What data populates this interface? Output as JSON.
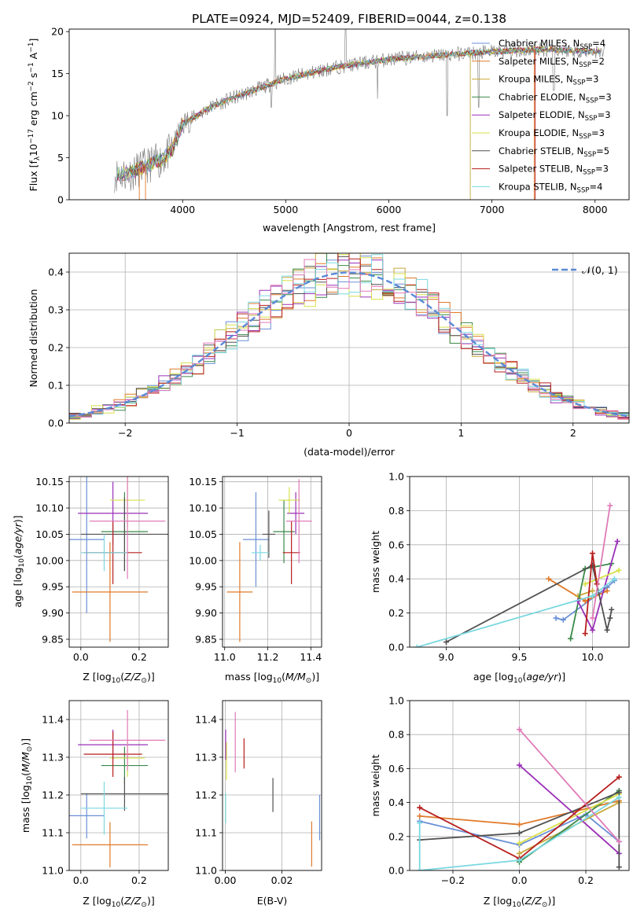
{
  "title": "PLATE=0924, MJD=52409, FIBERID=0044, z=0.138",
  "colors": {
    "cM": "#6a8fd6",
    "sM": "#e07a2a",
    "kM": "#c8a83a",
    "cE": "#3a8a4a",
    "sE": "#9a30b8",
    "kE": "#d8e04a",
    "cS": "#505050",
    "sS": "#b81e1e",
    "kS": "#7ad8e0",
    "pink": "#e07ab8",
    "gauss": "#5b8ad6",
    "grid": "#b0b0b0"
  },
  "chart_data": [
    {
      "type": "line",
      "id": "spectrum",
      "xlabel": "wavelength [Angstrom, rest frame]",
      "ylabel": "Flux [f",
      "xlim": [
        2900,
        8330
      ],
      "ylim": [
        0,
        20.3
      ],
      "xticks": [
        "4000",
        "5000",
        "6000",
        "7000",
        "8000"
      ],
      "yticks": [
        "0",
        "5",
        "10",
        "15",
        "20"
      ],
      "legend_position": "top-right",
      "series": [
        {
          "name": "Chabrier MILES, N",
          "nssp": "=4",
          "ckey": "cM"
        },
        {
          "name": "Salpeter MILES, N",
          "nssp": "=2",
          "ckey": "sM"
        },
        {
          "name": "Kroupa MILES, N",
          "nssp": "=3",
          "ckey": "kM"
        },
        {
          "name": "Chabrier ELODIE, N",
          "nssp": "=3",
          "ckey": "cE"
        },
        {
          "name": "Salpeter ELODIE, N",
          "nssp": "=3",
          "ckey": "sE"
        },
        {
          "name": "Kroupa ELODIE, N",
          "nssp": "=3",
          "ckey": "kE"
        },
        {
          "name": "Chabrier STELIB, N",
          "nssp": "=5",
          "ckey": "cS"
        },
        {
          "name": "Salpeter STELIB, N",
          "nssp": "=3",
          "ckey": "sS"
        },
        {
          "name": "Kroupa STELIB, N",
          "nssp": "=4",
          "ckey": "kS"
        }
      ],
      "continuum": [
        [
          3340,
          3.0
        ],
        [
          3500,
          3.2
        ],
        [
          3600,
          3.8
        ],
        [
          3800,
          4.8
        ],
        [
          3900,
          6.0
        ],
        [
          4000,
          9.0
        ],
        [
          4300,
          11.2
        ],
        [
          4600,
          12.6
        ],
        [
          5000,
          14.4
        ],
        [
          5500,
          15.8
        ],
        [
          6000,
          16.7
        ],
        [
          6500,
          17.2
        ],
        [
          7000,
          17.6
        ],
        [
          7500,
          17.9
        ],
        [
          8100,
          17.6
        ]
      ]
    },
    {
      "type": "bar",
      "id": "residuals",
      "xlabel": "(data-model)/error",
      "ylabel": "Normed distribution",
      "xlim": [
        -2.5,
        2.5
      ],
      "ylim": [
        0,
        0.45
      ],
      "xticks": [
        "−2",
        "−1",
        "0",
        "1",
        "2"
      ],
      "yticks": [
        "0.0",
        "0.1",
        "0.2",
        "0.3",
        "0.4"
      ],
      "legend": "𝒩(0, 1)",
      "legend_position": "top-right"
    },
    {
      "type": "scatter",
      "id": "age-vs-Z",
      "xlabel": "Z [log",
      "ylabel": "age  [log",
      "xlim": [
        -0.04,
        0.3
      ],
      "ylim": [
        9.835,
        10.16
      ],
      "xticks": [
        "0.0",
        "0.2"
      ],
      "yticks": [
        "9.85",
        "9.90",
        "9.95",
        "10.00",
        "10.05",
        "10.10",
        "10.15"
      ],
      "points": [
        {
          "c": "cM",
          "x": 0.02,
          "xe": 0.06,
          "y": 10.04,
          "ye": 0.14
        },
        {
          "c": "sM",
          "x": 0.1,
          "xe": 0.13,
          "y": 9.94,
          "ye": 0.095
        },
        {
          "c": "cE",
          "x": 0.15,
          "xe": 0.08,
          "y": 10.055,
          "ye": 0.075
        },
        {
          "c": "sE",
          "x": 0.11,
          "xe": 0.12,
          "y": 10.09,
          "ye": 0.06
        },
        {
          "c": "kE",
          "x": 0.16,
          "xe": 0.06,
          "y": 10.115,
          "ye": 0.05
        },
        {
          "c": "cS",
          "x": 0.15,
          "xe": 0.15,
          "y": 10.05,
          "ye": 0.07
        },
        {
          "c": "sS",
          "x": 0.11,
          "xe": 0.1,
          "y": 10.015,
          "ye": 0.06
        },
        {
          "c": "kS",
          "x": 0.08,
          "xe": 0.08,
          "y": 10.015,
          "ye": 0.035
        },
        {
          "c": "pink",
          "x": 0.16,
          "xe": 0.13,
          "y": 10.075,
          "ye": 0.11
        }
      ]
    },
    {
      "type": "scatter",
      "id": "age-vs-mass",
      "xlabel": "mass [log",
      "ylabel": "",
      "xlim": [
        10.99,
        11.45
      ],
      "ylim": [
        9.835,
        10.16
      ],
      "xticks": [
        "11.0",
        "11.2",
        "11.4"
      ],
      "yticks": [
        "9.85",
        "9.90",
        "9.95",
        "10.00",
        "10.05",
        "10.10",
        "10.15"
      ],
      "points": [
        {
          "c": "cM",
          "x": 11.145,
          "xe": 0.06,
          "y": 10.04,
          "ye": 0.09
        },
        {
          "c": "sM",
          "x": 11.07,
          "xe": 0.06,
          "y": 9.94,
          "ye": 0.095
        },
        {
          "c": "cE",
          "x": 11.275,
          "xe": 0.05,
          "y": 10.055,
          "ye": 0.06
        },
        {
          "c": "sE",
          "x": 11.33,
          "xe": 0.04,
          "y": 10.09,
          "ye": 0.04
        },
        {
          "c": "kE",
          "x": 11.3,
          "xe": 0.05,
          "y": 10.115,
          "ye": 0.025
        },
        {
          "c": "cS",
          "x": 11.205,
          "xe": 0.03,
          "y": 10.05,
          "ye": 0.045
        },
        {
          "c": "sS",
          "x": 11.31,
          "xe": 0.04,
          "y": 10.015,
          "ye": 0.06
        },
        {
          "c": "kS",
          "x": 11.165,
          "xe": 0.04,
          "y": 10.015,
          "ye": 0.015
        },
        {
          "c": "pink",
          "x": 11.345,
          "xe": 0.06,
          "y": 10.075,
          "ye": 0.08
        }
      ]
    },
    {
      "type": "line",
      "id": "mass-weight-vs-age",
      "xlabel": "age  [log",
      "ylabel": "mass weight",
      "xlim": [
        8.75,
        10.25
      ],
      "ylim": [
        0,
        1.0
      ],
      "xticks": [
        "9.0",
        "9.5",
        "10.0"
      ],
      "yticks": [
        "0.0",
        "0.2",
        "0.4",
        "0.6",
        "0.8",
        "1.0"
      ],
      "series": [
        {
          "c": "cM",
          "pts": [
            [
              9.75,
              0.17
            ],
            [
              9.8,
              0.16
            ],
            [
              10.1,
              0.35
            ],
            [
              10.15,
              0.39
            ]
          ]
        },
        {
          "c": "sM",
          "pts": [
            [
              9.7,
              0.4
            ],
            [
              9.95,
              0.27
            ],
            [
              10.1,
              0.33
            ]
          ]
        },
        {
          "c": "kM",
          "pts": [
            [
              9.9,
              0.3
            ],
            [
              10.0,
              0.33
            ]
          ]
        },
        {
          "c": "cE",
          "pts": [
            [
              9.85,
              0.05
            ],
            [
              9.95,
              0.46
            ],
            [
              10.13,
              0.49
            ]
          ]
        },
        {
          "c": "sE",
          "pts": [
            [
              9.9,
              0.27
            ],
            [
              10.0,
              0.1
            ],
            [
              10.17,
              0.62
            ]
          ]
        },
        {
          "c": "kE",
          "pts": [
            [
              9.95,
              0.37
            ],
            [
              10.18,
              0.45
            ]
          ]
        },
        {
          "c": "cS",
          "pts": [
            [
              9.0,
              0.03
            ],
            [
              10.0,
              0.48
            ],
            [
              10.1,
              0.1
            ],
            [
              10.12,
              0.17
            ],
            [
              10.13,
              0.22
            ]
          ]
        },
        {
          "c": "sS",
          "pts": [
            [
              9.95,
              0.08
            ],
            [
              10.0,
              0.55
            ],
            [
              10.03,
              0.37
            ]
          ]
        },
        {
          "c": "kS",
          "pts": [
            [
              8.8,
              0.0
            ],
            [
              10.0,
              0.3
            ],
            [
              10.15,
              0.4
            ]
          ]
        },
        {
          "c": "pink",
          "pts": [
            [
              10.0,
              0.17
            ],
            [
              10.12,
              0.83
            ]
          ]
        }
      ]
    },
    {
      "type": "scatter",
      "id": "mass-vs-Z",
      "xlabel": "Z [log",
      "ylabel": "mass [log",
      "xlim": [
        -0.04,
        0.3
      ],
      "ylim": [
        11.0,
        11.45
      ],
      "xticks": [
        "0.0",
        "0.2"
      ],
      "yticks": [
        "11.0",
        "11.1",
        "11.2",
        "11.3",
        "11.4"
      ],
      "points": [
        {
          "c": "cM",
          "x": 0.02,
          "xe": 0.06,
          "y": 11.145,
          "ye": 0.06
        },
        {
          "c": "sM",
          "x": 0.1,
          "xe": 0.13,
          "y": 11.068,
          "ye": 0.06
        },
        {
          "c": "cE",
          "x": 0.15,
          "xe": 0.08,
          "y": 11.278,
          "ye": 0.05
        },
        {
          "c": "sE",
          "x": 0.11,
          "xe": 0.12,
          "y": 11.333,
          "ye": 0.04
        },
        {
          "c": "kE",
          "x": 0.16,
          "xe": 0.06,
          "y": 11.298,
          "ye": 0.05
        },
        {
          "c": "cS",
          "x": 0.15,
          "xe": 0.15,
          "y": 11.203,
          "ye": 0.045
        },
        {
          "c": "sS",
          "x": 0.11,
          "xe": 0.1,
          "y": 11.308,
          "ye": 0.06
        },
        {
          "c": "kS",
          "x": 0.08,
          "xe": 0.08,
          "y": 11.165,
          "ye": 0.07
        },
        {
          "c": "pink",
          "x": 0.16,
          "xe": 0.13,
          "y": 11.345,
          "ye": 0.08
        }
      ]
    },
    {
      "type": "scatter",
      "id": "mass-vs-EBV",
      "xlabel": "E(B-V)",
      "ylabel": "",
      "xlim": [
        -0.001,
        0.034
      ],
      "ylim": [
        11.0,
        11.45
      ],
      "xticks": [
        "0.00",
        "0.02"
      ],
      "yticks": [
        "11.0",
        "11.1",
        "11.2",
        "11.3",
        "11.4"
      ],
      "points": [
        {
          "c": "cM",
          "x": 0.0333,
          "y": 11.14,
          "ye": 0.06
        },
        {
          "c": "sM",
          "x": 0.0305,
          "y": 11.07,
          "ye": 0.06
        },
        {
          "c": "sE",
          "x": 0.0001,
          "y": 11.333,
          "ye": 0.04
        },
        {
          "c": "kE",
          "x": 0.0004,
          "y": 11.29,
          "ye": 0.05
        },
        {
          "c": "cS",
          "x": 0.0168,
          "y": 11.2,
          "ye": 0.045
        },
        {
          "c": "sS",
          "x": 0.0066,
          "y": 11.31,
          "ye": 0.04
        },
        {
          "c": "kS",
          "x": 0.0001,
          "y": 11.165,
          "ye": 0.04
        },
        {
          "c": "pink",
          "x": 0.0035,
          "y": 11.34,
          "ye": 0.08
        }
      ]
    },
    {
      "type": "line",
      "id": "mass-weight-vs-Z",
      "xlabel": "Z [log",
      "ylabel": "mass weight",
      "xlim": [
        -0.33,
        0.33
      ],
      "ylim": [
        0,
        1.0
      ],
      "xticks": [
        "−0.2",
        "0.0",
        "0.2"
      ],
      "yticks": [
        "0.0",
        "0.2",
        "0.4",
        "0.6",
        "0.8",
        "1.0"
      ],
      "series": [
        {
          "c": "cM",
          "pts": [
            [
              -0.3,
              0.29
            ],
            [
              0.0,
              0.15
            ],
            [
              0.2,
              0.33
            ],
            [
              0.3,
              0.17
            ]
          ]
        },
        {
          "c": "sM",
          "pts": [
            [
              -0.3,
              0.32
            ],
            [
              0.0,
              0.27
            ],
            [
              0.3,
              0.41
            ]
          ]
        },
        {
          "c": "kM",
          "pts": [
            [
              0.0,
              0.1
            ],
            [
              0.3,
              0.4
            ]
          ]
        },
        {
          "c": "cE",
          "pts": [
            [
              0.0,
              0.05
            ],
            [
              0.3,
              0.47
            ]
          ]
        },
        {
          "c": "sE",
          "pts": [
            [
              0.0,
              0.62
            ],
            [
              0.3,
              0.1
            ]
          ]
        },
        {
          "c": "kE",
          "pts": [
            [
              0.0,
              0.16
            ],
            [
              0.3,
              0.45
            ]
          ]
        },
        {
          "c": "cS",
          "pts": [
            [
              -0.3,
              0.18
            ],
            [
              0.0,
              0.22
            ],
            [
              0.3,
              0.46
            ],
            [
              0.3,
              0.02
            ]
          ]
        },
        {
          "c": "sS",
          "pts": [
            [
              -0.3,
              0.37
            ],
            [
              0.0,
              0.07
            ],
            [
              0.3,
              0.55
            ]
          ]
        },
        {
          "c": "kS",
          "pts": [
            [
              -0.3,
              0.28
            ],
            [
              -0.3,
              0.0
            ],
            [
              0.0,
              0.06
            ],
            [
              0.3,
              0.43
            ]
          ]
        },
        {
          "c": "pink",
          "pts": [
            [
              0.0,
              0.83
            ],
            [
              0.3,
              0.17
            ]
          ]
        }
      ]
    }
  ]
}
